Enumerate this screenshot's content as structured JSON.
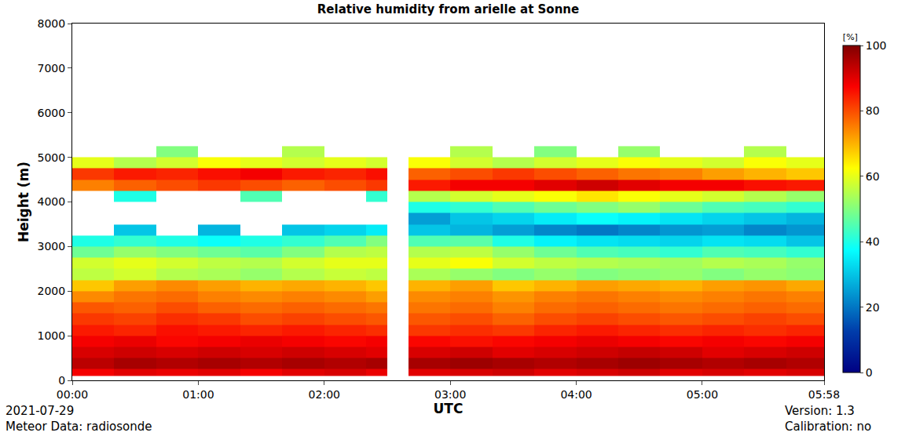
{
  "chart_data": {
    "type": "heatmap",
    "title": "Relative humidity from arielle at Sonne",
    "x_label": "UTC",
    "y_label": "Height (m)",
    "color": "Jet",
    "colorbar_title": "[%]",
    "zlim": [
      0,
      100
    ],
    "zticks": [
      0,
      20,
      40,
      60,
      80,
      100
    ],
    "xlim": [
      0,
      358
    ],
    "xticks": [
      {
        "value": 0,
        "label": "00:00"
      },
      {
        "value": 60,
        "label": "01:00"
      },
      {
        "value": 120,
        "label": "02:00"
      },
      {
        "value": 180,
        "label": "03:00"
      },
      {
        "value": 240,
        "label": "04:00"
      },
      {
        "value": 300,
        "label": "05:00"
      },
      {
        "value": 358,
        "label": "05:58"
      }
    ],
    "ylim": [
      0,
      8000
    ],
    "yticks": [
      0,
      1000,
      2000,
      3000,
      4000,
      5000,
      6000,
      7000,
      8000
    ],
    "footer": {
      "left": [
        "2021-07-29",
        "Meteor Data: radiosonde"
      ],
      "right": [
        "Version: 1.3",
        "Calibration: no"
      ]
    },
    "x_bins": [
      0,
      20,
      40,
      60,
      80,
      100,
      120,
      140,
      150,
      160,
      180,
      200,
      220,
      240,
      260,
      280,
      300,
      320,
      340,
      360
    ],
    "y_bins": [
      100,
      250,
      500,
      750,
      1000,
      1250,
      1500,
      1750,
      2000,
      2250,
      2500,
      2750,
      3000,
      3250,
      3500,
      3750,
      4000,
      4250,
      4500,
      4750,
      5000,
      5250
    ],
    "cells": [
      [
        88,
        90,
        89,
        90,
        88,
        90,
        91,
        89,
        null,
        90,
        91,
        92,
        90,
        91,
        92,
        90,
        91,
        90,
        91
      ],
      [
        94,
        96,
        95,
        96,
        95,
        96,
        95,
        96,
        null,
        96,
        97,
        96,
        95,
        96,
        97,
        96,
        95,
        96,
        95
      ],
      [
        91,
        92,
        91,
        92,
        91,
        92,
        91,
        90,
        null,
        91,
        92,
        90,
        91,
        92,
        93,
        92,
        90,
        91,
        92
      ],
      [
        88,
        89,
        87,
        88,
        89,
        88,
        87,
        88,
        null,
        87,
        86,
        87,
        88,
        89,
        88,
        87,
        88,
        87,
        88
      ],
      [
        85,
        84,
        86,
        85,
        84,
        85,
        84,
        83,
        null,
        82,
        83,
        82,
        84,
        85,
        84,
        83,
        84,
        83,
        84
      ],
      [
        82,
        81,
        83,
        82,
        80,
        81,
        80,
        79,
        null,
        79,
        80,
        78,
        80,
        81,
        80,
        79,
        80,
        81,
        80
      ],
      [
        79,
        78,
        80,
        78,
        77,
        78,
        77,
        76,
        null,
        76,
        77,
        75,
        77,
        78,
        77,
        76,
        77,
        78,
        77
      ],
      [
        74,
        76,
        77,
        75,
        74,
        75,
        74,
        72,
        null,
        74,
        75,
        73,
        75,
        76,
        75,
        74,
        75,
        76,
        75
      ],
      [
        68,
        72,
        74,
        72,
        70,
        71,
        70,
        68,
        null,
        70,
        72,
        68,
        70,
        72,
        71,
        70,
        72,
        73,
        71
      ],
      [
        56,
        58,
        55,
        54,
        52,
        55,
        57,
        56,
        null,
        54,
        52,
        50,
        52,
        50,
        51,
        52,
        50,
        52,
        51
      ],
      [
        58,
        60,
        58,
        56,
        55,
        58,
        60,
        60,
        null,
        60,
        62,
        58,
        56,
        55,
        54,
        53,
        55,
        54,
        52
      ],
      [
        48,
        52,
        50,
        48,
        46,
        50,
        55,
        56,
        null,
        55,
        56,
        52,
        48,
        45,
        44,
        42,
        45,
        44,
        42
      ],
      [
        40,
        42,
        40,
        38,
        40,
        42,
        45,
        50,
        null,
        45,
        46,
        40,
        36,
        34,
        33,
        32,
        34,
        33,
        30
      ],
      [
        null,
        30,
        null,
        28,
        null,
        30,
        32,
        35,
        null,
        30,
        28,
        25,
        22,
        20,
        22,
        24,
        25,
        22,
        24
      ],
      [
        null,
        null,
        null,
        null,
        null,
        null,
        null,
        null,
        null,
        25,
        30,
        32,
        35,
        38,
        36,
        34,
        32,
        30,
        28
      ],
      [
        null,
        null,
        null,
        null,
        null,
        null,
        null,
        null,
        null,
        40,
        42,
        45,
        48,
        50,
        52,
        48,
        45,
        44,
        42
      ],
      [
        null,
        40,
        null,
        null,
        45,
        null,
        null,
        42,
        null,
        55,
        58,
        60,
        62,
        65,
        62,
        60,
        58,
        55,
        52
      ],
      [
        75,
        78,
        80,
        82,
        80,
        78,
        80,
        82,
        null,
        85,
        88,
        88,
        90,
        92,
        90,
        88,
        88,
        86,
        85
      ],
      [
        82,
        85,
        84,
        86,
        88,
        85,
        84,
        86,
        null,
        78,
        80,
        82,
        80,
        78,
        76,
        75,
        72,
        70,
        68
      ],
      [
        60,
        55,
        58,
        62,
        60,
        58,
        60,
        58,
        null,
        62,
        58,
        55,
        58,
        60,
        62,
        60,
        58,
        62,
        60
      ],
      [
        null,
        null,
        50,
        null,
        null,
        55,
        null,
        null,
        null,
        null,
        55,
        null,
        50,
        null,
        52,
        null,
        null,
        55,
        null
      ]
    ]
  }
}
